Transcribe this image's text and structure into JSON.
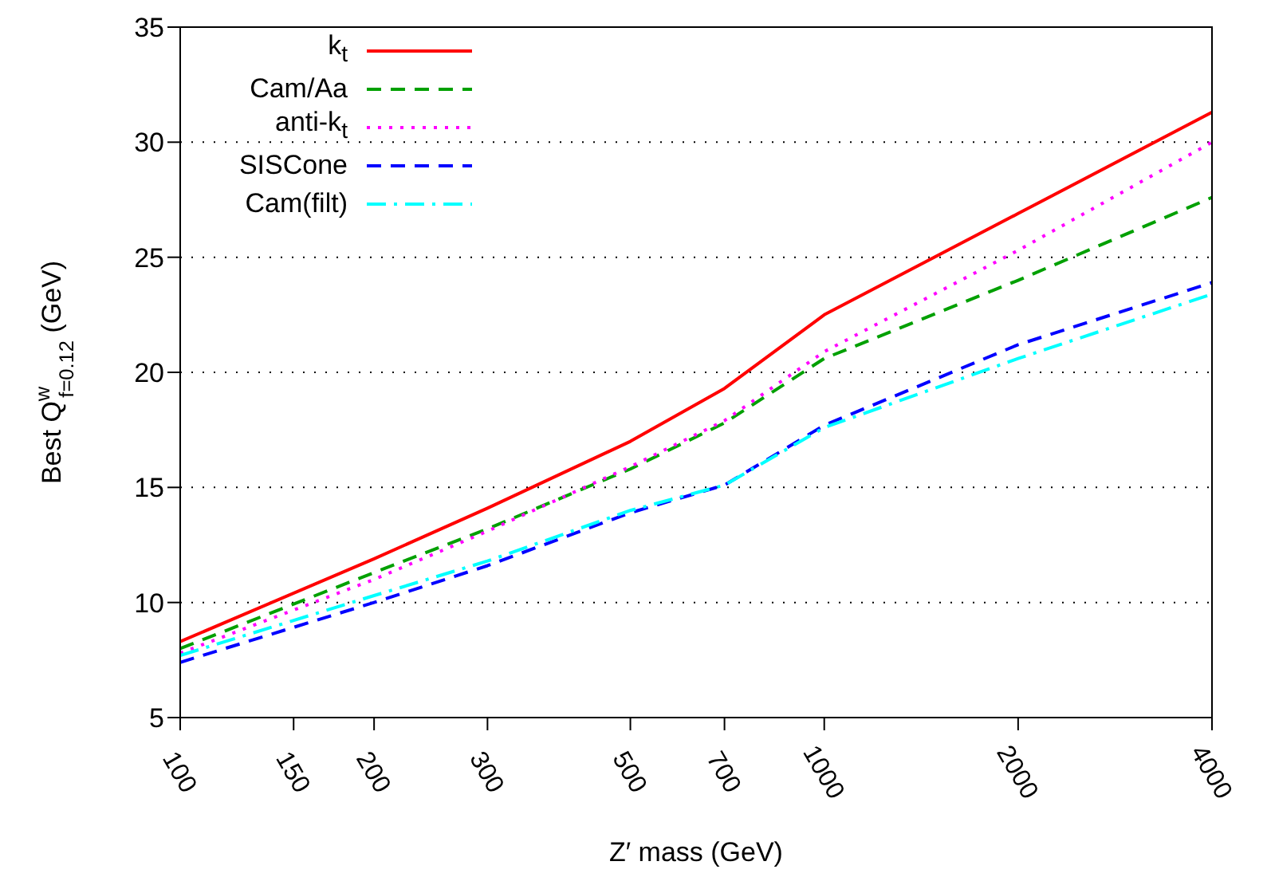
{
  "chart_data": {
    "type": "line",
    "xlabel": "Z′ mass (GeV)",
    "ylabel": "Best Q$^{w}$$_{f=0.12}$ (GeV)",
    "x": [
      100,
      200,
      300,
      500,
      700,
      1000,
      2000,
      4000
    ],
    "series": [
      {
        "name": "k$_{t}$",
        "color": "#ff0000",
        "line_style": "solid",
        "values": [
          8.3,
          11.9,
          14.1,
          17.0,
          19.3,
          22.5,
          26.9,
          31.3
        ]
      },
      {
        "name": "Cam/Aa",
        "color": "#00a000",
        "line_style": "dashed",
        "values": [
          8.0,
          11.3,
          13.2,
          15.8,
          17.8,
          20.6,
          24.0,
          27.6
        ]
      },
      {
        "name": "anti-k$_{t}$",
        "color": "#ff00ff",
        "line_style": "dotted",
        "values": [
          7.8,
          11.0,
          13.1,
          15.9,
          17.9,
          20.9,
          25.3,
          30.0
        ]
      },
      {
        "name": "SISCone",
        "color": "#0000ff",
        "line_style": "dashed",
        "values": [
          7.4,
          10.0,
          11.6,
          13.9,
          15.1,
          17.7,
          21.2,
          23.9
        ]
      },
      {
        "name": "Cam(filt)",
        "color": "#00ffff",
        "line_style": "dashdot",
        "values": [
          7.7,
          10.3,
          11.8,
          14.0,
          15.1,
          17.6,
          20.6,
          23.4
        ]
      }
    ],
    "log": "x",
    "xlim": [
      100,
      4000
    ],
    "xticks": [
      100,
      150,
      200,
      300,
      500,
      700,
      1000,
      2000,
      4000
    ],
    "ylim": [
      5,
      35
    ],
    "yticks": [
      5,
      10,
      15,
      20,
      25,
      30,
      35
    ],
    "grid": "y",
    "legend": "top left",
    "marker": "none"
  }
}
